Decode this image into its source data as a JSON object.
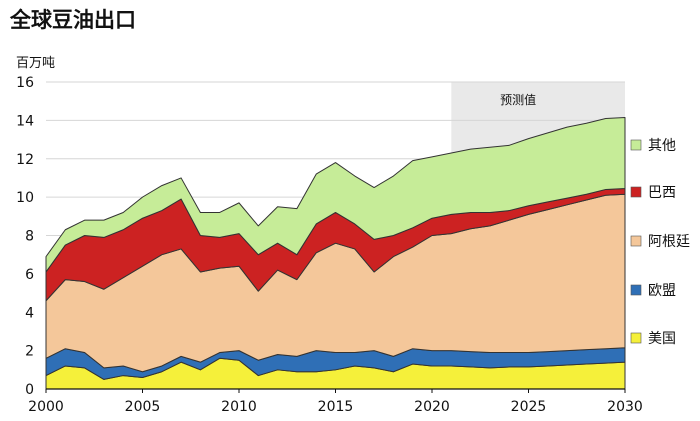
{
  "chart_data": {
    "type": "area",
    "stacked": true,
    "title": "全球豆油出口",
    "ylabel": "百万吨",
    "xlabel": "",
    "xlim": [
      2000,
      2030
    ],
    "ylim": [
      0,
      16
    ],
    "x_ticks": [
      2000,
      2005,
      2010,
      2015,
      2020,
      2025,
      2030
    ],
    "y_ticks": [
      0,
      2,
      4,
      6,
      8,
      10,
      12,
      14,
      16
    ],
    "grid": "horizontal",
    "legend_position": "right",
    "forecast": {
      "label": "预测值",
      "start": 2021,
      "end": 2030
    },
    "x": [
      2000,
      2001,
      2002,
      2003,
      2004,
      2005,
      2006,
      2007,
      2008,
      2009,
      2010,
      2011,
      2012,
      2013,
      2014,
      2015,
      2016,
      2017,
      2018,
      2019,
      2020,
      2021,
      2022,
      2023,
      2024,
      2025,
      2026,
      2027,
      2028,
      2029,
      2030
    ],
    "series": [
      {
        "name": "美国",
        "color": "#f5f03a",
        "values": [
          0.7,
          1.2,
          1.1,
          0.5,
          0.7,
          0.6,
          0.9,
          1.4,
          1.0,
          1.6,
          1.5,
          0.7,
          1.0,
          0.9,
          0.9,
          1.0,
          1.2,
          1.1,
          0.9,
          1.3,
          1.2,
          1.2,
          1.15,
          1.1,
          1.15,
          1.15,
          1.2,
          1.25,
          1.3,
          1.35,
          1.4
        ]
      },
      {
        "name": "欧盟",
        "color": "#2f6fb6",
        "values": [
          0.9,
          0.9,
          0.8,
          0.6,
          0.5,
          0.3,
          0.3,
          0.3,
          0.4,
          0.3,
          0.5,
          0.8,
          0.8,
          0.8,
          1.1,
          0.9,
          0.7,
          0.9,
          0.8,
          0.8,
          0.8,
          0.8,
          0.8,
          0.8,
          0.75,
          0.75,
          0.75,
          0.75,
          0.75,
          0.75,
          0.75
        ]
      },
      {
        "name": "阿根廷",
        "color": "#f4c79a",
        "values": [
          3.0,
          3.6,
          3.7,
          4.1,
          4.6,
          5.5,
          5.8,
          5.6,
          4.7,
          4.4,
          4.4,
          3.6,
          4.4,
          4.0,
          5.1,
          5.7,
          5.4,
          4.1,
          5.2,
          5.3,
          6.0,
          6.1,
          6.4,
          6.6,
          6.9,
          7.2,
          7.4,
          7.6,
          7.8,
          8.0,
          8.0
        ]
      },
      {
        "name": "巴西",
        "color": "#cc2222",
        "values": [
          1.5,
          1.8,
          2.4,
          2.7,
          2.5,
          2.5,
          2.3,
          2.6,
          1.9,
          1.6,
          1.7,
          1.9,
          1.4,
          1.3,
          1.5,
          1.6,
          1.3,
          1.7,
          1.1,
          1.0,
          0.9,
          1.0,
          0.85,
          0.7,
          0.5,
          0.45,
          0.4,
          0.35,
          0.3,
          0.3,
          0.3
        ]
      },
      {
        "name": "其他",
        "color": "#c6ec98",
        "values": [
          0.8,
          0.8,
          0.8,
          0.9,
          0.9,
          1.1,
          1.3,
          1.1,
          1.2,
          1.3,
          1.6,
          1.5,
          1.9,
          2.4,
          2.6,
          2.6,
          2.5,
          2.7,
          3.1,
          3.5,
          3.2,
          3.2,
          3.3,
          3.4,
          3.4,
          3.5,
          3.6,
          3.7,
          3.7,
          3.7,
          3.7
        ]
      }
    ]
  }
}
